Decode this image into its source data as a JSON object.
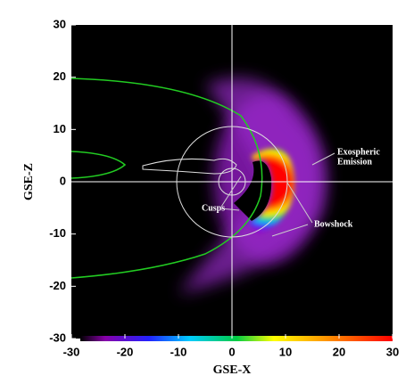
{
  "chart_data": {
    "type": "image",
    "xlabel": "GSE-X",
    "ylabel": "GSE-Z",
    "xlim": [
      -30,
      30
    ],
    "ylim": [
      -30,
      30
    ],
    "xticks": [
      -30,
      -20,
      -10,
      0,
      10,
      20,
      30
    ],
    "yticks": [
      -30,
      -20,
      -10,
      0,
      10,
      20,
      30
    ],
    "annotations": [
      {
        "lines": [
          "Exospheric",
          "Emission"
        ]
      },
      {
        "lines": [
          "Bowshock"
        ]
      },
      {
        "lines": [
          "Cusps"
        ]
      }
    ]
  }
}
